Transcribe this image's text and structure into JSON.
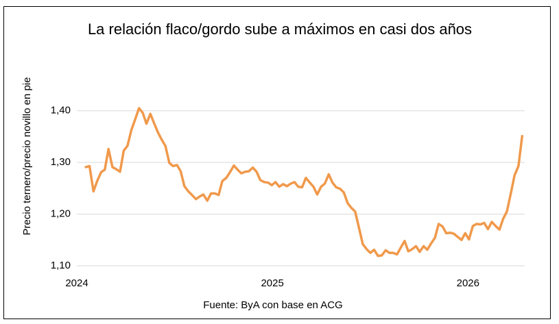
{
  "chart_data": {
    "type": "line",
    "title": "La relación flaco/gordo sube a máximos en casi dos años",
    "y_label": "Precio ternero/precio novillo en pie",
    "source": "Fuente: ByA con base en ACG",
    "x": [
      2024.046,
      2024.065,
      2024.085,
      2024.104,
      2024.124,
      2024.143,
      2024.162,
      2024.182,
      2024.201,
      2024.221,
      2024.24,
      2024.259,
      2024.279,
      2024.298,
      2024.318,
      2024.337,
      2024.356,
      2024.376,
      2024.395,
      2024.415,
      2024.434,
      2024.453,
      2024.473,
      2024.492,
      2024.512,
      2024.531,
      2024.55,
      2024.57,
      2024.589,
      2024.609,
      2024.628,
      2024.647,
      2024.667,
      2024.686,
      2024.706,
      2024.725,
      2024.744,
      2024.764,
      2024.783,
      2024.803,
      2024.822,
      2024.841,
      2024.861,
      2024.88,
      2024.9,
      2024.919,
      2024.938,
      2024.958,
      2024.977,
      2024.997,
      2025.016,
      2025.035,
      2025.055,
      2025.074,
      2025.094,
      2025.113,
      2025.132,
      2025.152,
      2025.171,
      2025.191,
      2025.21,
      2025.229,
      2025.249,
      2025.268,
      2025.288,
      2025.307,
      2025.326,
      2025.346,
      2025.365,
      2025.385,
      2025.404,
      2025.423,
      2025.443,
      2025.462,
      2025.482,
      2025.501,
      2025.52,
      2025.54,
      2025.559,
      2025.579,
      2025.598,
      2025.617,
      2025.637,
      2025.656,
      2025.676,
      2025.695,
      2025.714,
      2025.734,
      2025.753,
      2025.773,
      2025.792,
      2025.811,
      2025.831,
      2025.85,
      2025.87,
      2025.889,
      2025.908,
      2025.928,
      2025.947,
      2025.967,
      2025.986,
      2026.005,
      2026.025,
      2026.044,
      2026.064,
      2026.083,
      2026.102,
      2026.122,
      2026.141,
      2026.161,
      2026.18,
      2026.199,
      2026.219,
      2026.238,
      2026.258,
      2026.277
    ],
    "series": [
      {
        "color": "#f0994b",
        "values": [
          1.291,
          1.293,
          1.244,
          1.264,
          1.281,
          1.286,
          1.326,
          1.291,
          1.287,
          1.282,
          1.323,
          1.332,
          1.363,
          1.383,
          1.405,
          1.396,
          1.375,
          1.394,
          1.376,
          1.358,
          1.344,
          1.332,
          1.299,
          1.293,
          1.295,
          1.283,
          1.254,
          1.244,
          1.237,
          1.229,
          1.234,
          1.238,
          1.226,
          1.24,
          1.24,
          1.237,
          1.264,
          1.27,
          1.281,
          1.294,
          1.286,
          1.279,
          1.282,
          1.283,
          1.29,
          1.282,
          1.266,
          1.262,
          1.261,
          1.256,
          1.262,
          1.253,
          1.258,
          1.254,
          1.259,
          1.262,
          1.253,
          1.252,
          1.27,
          1.261,
          1.253,
          1.238,
          1.253,
          1.259,
          1.277,
          1.261,
          1.252,
          1.249,
          1.242,
          1.221,
          1.212,
          1.205,
          1.173,
          1.142,
          1.132,
          1.125,
          1.131,
          1.119,
          1.12,
          1.13,
          1.125,
          1.125,
          1.122,
          1.135,
          1.148,
          1.128,
          1.132,
          1.138,
          1.127,
          1.138,
          1.131,
          1.143,
          1.154,
          1.181,
          1.176,
          1.163,
          1.164,
          1.162,
          1.156,
          1.15,
          1.163,
          1.151,
          1.177,
          1.181,
          1.18,
          1.183,
          1.171,
          1.185,
          1.177,
          1.17,
          1.191,
          1.205,
          1.24,
          1.275,
          1.293,
          1.351
        ]
      }
    ],
    "xlim": [
      2024,
      2026.29
    ],
    "xticks": [
      2024,
      2025,
      2026
    ],
    "ylim": [
      1.1,
      1.45
    ],
    "yticks": [
      {
        "value": 1.1,
        "label": "1,10"
      },
      {
        "value": 1.2,
        "label": "1,20"
      },
      {
        "value": 1.3,
        "label": "1,30"
      },
      {
        "value": 1.4,
        "label": "1,40"
      }
    ],
    "grid": true
  }
}
